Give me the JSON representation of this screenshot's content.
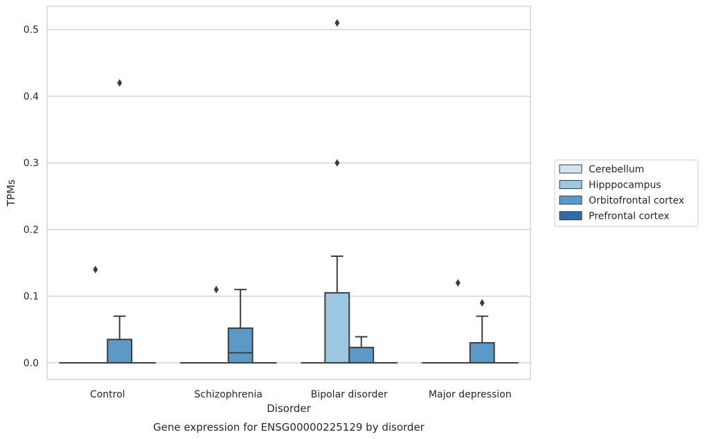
{
  "chart_data": {
    "type": "box",
    "title": "Gene expression for ENSG00000225129 by disorder",
    "xlabel": "Disorder",
    "ylabel": "TPMs",
    "ylim": [
      -0.025,
      0.535
    ],
    "yticks": [
      0.0,
      0.1,
      0.2,
      0.3,
      0.4,
      0.5
    ],
    "ytick_labels": [
      "0.0",
      "0.1",
      "0.2",
      "0.3",
      "0.4",
      "0.5"
    ],
    "grid": true,
    "legend_position": "right",
    "categories": [
      "Control",
      "Schizophrenia",
      "Bipolar disorder",
      "Major depression"
    ],
    "series": [
      {
        "name": "Cerebellum",
        "color": "#d3e3f1",
        "boxes": [
          {
            "category": "Control",
            "min": 0.0,
            "q1": 0.0,
            "median": 0.0,
            "q3": 0.0,
            "max": 0.0,
            "outliers": []
          },
          {
            "category": "Schizophrenia",
            "min": 0.0,
            "q1": 0.0,
            "median": 0.0,
            "q3": 0.0,
            "max": 0.0,
            "outliers": []
          },
          {
            "category": "Bipolar disorder",
            "min": 0.0,
            "q1": 0.0,
            "median": 0.0,
            "q3": 0.0,
            "max": 0.0,
            "outliers": []
          },
          {
            "category": "Major depression",
            "min": 0.0,
            "q1": 0.0,
            "median": 0.0,
            "q3": 0.0,
            "max": 0.0,
            "outliers": []
          }
        ]
      },
      {
        "name": "Hipppocampus",
        "color": "#9ac8e0",
        "boxes": [
          {
            "category": "Control",
            "min": 0.0,
            "q1": 0.0,
            "median": 0.0,
            "q3": 0.0,
            "max": 0.0,
            "outliers": [
              0.14
            ]
          },
          {
            "category": "Schizophrenia",
            "min": 0.0,
            "q1": 0.0,
            "median": 0.0,
            "q3": 0.0,
            "max": 0.0,
            "outliers": [
              0.11
            ]
          },
          {
            "category": "Bipolar disorder",
            "min": 0.0,
            "q1": 0.0,
            "median": 0.0,
            "q3": 0.105,
            "max": 0.16,
            "outliers": [
              0.3,
              0.51
            ]
          },
          {
            "category": "Major depression",
            "min": 0.0,
            "q1": 0.0,
            "median": 0.0,
            "q3": 0.0,
            "max": 0.0,
            "outliers": [
              0.12
            ]
          }
        ]
      },
      {
        "name": "Orbitofrontal cortex",
        "color": "#5b9ac8",
        "boxes": [
          {
            "category": "Control",
            "min": 0.0,
            "q1": 0.0,
            "median": 0.0,
            "q3": 0.035,
            "max": 0.07,
            "outliers": [
              0.42
            ]
          },
          {
            "category": "Schizophrenia",
            "min": 0.0,
            "q1": 0.0,
            "median": 0.015,
            "q3": 0.052,
            "max": 0.11,
            "outliers": []
          },
          {
            "category": "Bipolar disorder",
            "min": 0.0,
            "q1": 0.0,
            "median": 0.0,
            "q3": 0.023,
            "max": 0.039,
            "outliers": []
          },
          {
            "category": "Major depression",
            "min": 0.0,
            "q1": 0.0,
            "median": 0.0,
            "q3": 0.03,
            "max": 0.07,
            "outliers": [
              0.09
            ]
          }
        ]
      },
      {
        "name": "Prefrontal cortex",
        "color": "#2e6ca8",
        "boxes": [
          {
            "category": "Control",
            "min": 0.0,
            "q1": 0.0,
            "median": 0.0,
            "q3": 0.0,
            "max": 0.0,
            "outliers": []
          },
          {
            "category": "Schizophrenia",
            "min": 0.0,
            "q1": 0.0,
            "median": 0.0,
            "q3": 0.0,
            "max": 0.0,
            "outliers": []
          },
          {
            "category": "Bipolar disorder",
            "min": 0.0,
            "q1": 0.0,
            "median": 0.0,
            "q3": 0.0,
            "max": 0.0,
            "outliers": []
          },
          {
            "category": "Major depression",
            "min": 0.0,
            "q1": 0.0,
            "median": 0.0,
            "q3": 0.0,
            "max": 0.0,
            "outliers": []
          }
        ]
      }
    ]
  }
}
